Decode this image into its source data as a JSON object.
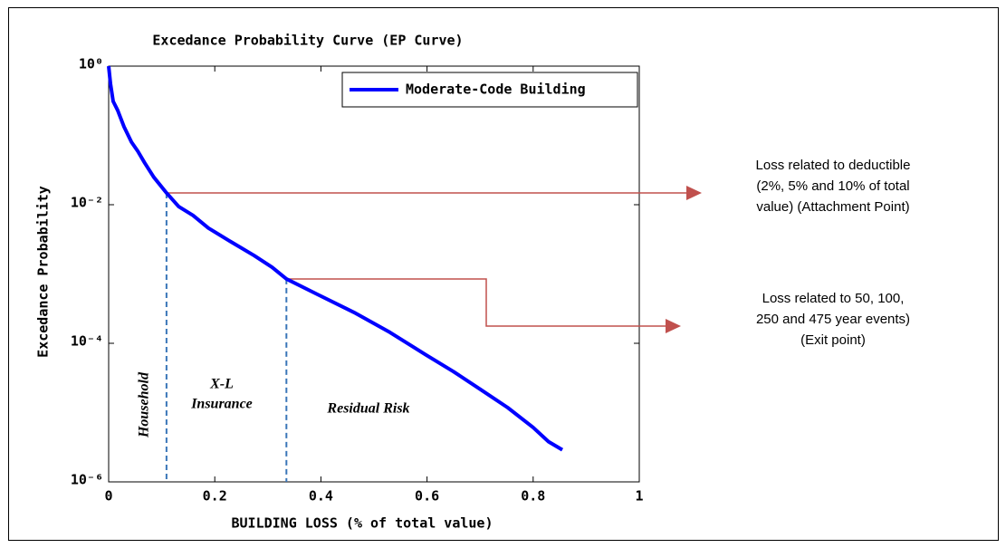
{
  "chart_data": {
    "type": "line",
    "title": "Excedance Probability Curve (EP Curve)",
    "xlabel": "BUILDING LOSS (% of total value)",
    "ylabel": "Excedance Probability",
    "log_y": true,
    "legend": "northeast",
    "xlim": [
      0,
      1
    ],
    "xticks": [
      0,
      0.2,
      0.4,
      0.6,
      0.8,
      1
    ],
    "ylim": [
      1e-06,
      1
    ],
    "yticks": [
      {
        "value": 1,
        "label": "10⁰"
      },
      {
        "value": 0.01,
        "label": "10⁻²"
      },
      {
        "value": 0.0001,
        "label": "10⁻⁴"
      },
      {
        "value": 1e-06,
        "label": "10⁻⁶"
      }
    ],
    "series": [
      {
        "name": "Moderate-Code Building",
        "color": "#0000ff",
        "x": [
          0,
          0.0034,
          0.0085,
          0.017,
          0.029,
          0.043,
          0.055,
          0.068,
          0.085,
          0.109,
          0.132,
          0.159,
          0.188,
          0.231,
          0.274,
          0.308,
          0.335,
          0.393,
          0.462,
          0.53,
          0.598,
          0.65,
          0.701,
          0.752,
          0.8,
          0.829,
          0.855
        ],
        "values": [
          1,
          0.56,
          0.31,
          0.23,
          0.133,
          0.08,
          0.059,
          0.04,
          0.025,
          0.0148,
          0.0094,
          0.007,
          0.0046,
          0.0029,
          0.00185,
          0.00125,
          0.00085,
          0.00051,
          0.00028,
          0.000144,
          6.8e-05,
          3.9e-05,
          2.15e-05,
          1.18e-05,
          6.1e-06,
          3.8e-06,
          2.9e-06
        ]
      }
    ],
    "vlines": {
      "color": "#3a76b8",
      "x": [
        0.109,
        0.335
      ]
    },
    "regions": [
      "Household",
      [
        "X-L",
        "Insurance"
      ],
      "Residual Risk"
    ],
    "annotations": [
      [
        "Loss related to deductible",
        "(2%, 5% and 10% of total",
        "value) (Attachment Point)"
      ],
      [
        "Loss related to 50, 100,",
        "250 and 475 year events)",
        "(Exit point)"
      ]
    ]
  }
}
